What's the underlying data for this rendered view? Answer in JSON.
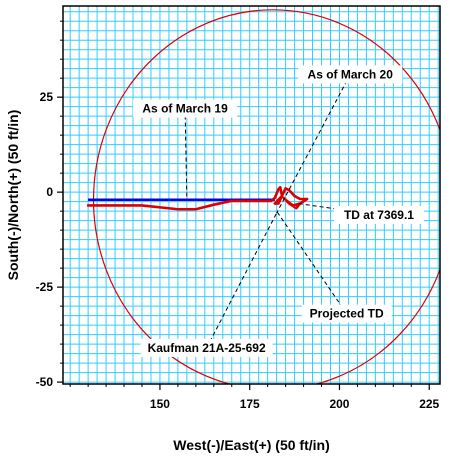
{
  "chart_data": {
    "type": "line",
    "xlabel": "West(-)/East(+) (50 ft/in)",
    "ylabel": "South(-)/North(+) (50 ft/in)",
    "xlim": [
      123,
      228
    ],
    "ylim": [
      -50.5,
      49
    ],
    "xticks": [
      150,
      175,
      200,
      225
    ],
    "yticks": [
      25,
      0,
      -25,
      -50
    ],
    "x_tick_labels": [
      "150",
      "175",
      "200",
      "225"
    ],
    "y_tick_labels": [
      "25",
      "0",
      "-25",
      "-50"
    ],
    "grid": true,
    "grid_step": 2.5,
    "colors": {
      "grid": "#33ccff",
      "circle": "#dd0000",
      "projected_path": "#0000dd",
      "actual_path": "#dd0000",
      "background": "#ffffff"
    },
    "target_circle": {
      "center": [
        181.5,
        -2
      ],
      "radius": 50
    },
    "series": [
      {
        "x": [
          130,
          182
        ],
        "y": [
          -2,
          -2
        ]
      },
      {
        "x": [
          130,
          145,
          155,
          160,
          165,
          170,
          174,
          178,
          181,
          182,
          183,
          183.5,
          184,
          182,
          183,
          184,
          185,
          186,
          187.5,
          189,
          191,
          189,
          187,
          185,
          184.5,
          186,
          188,
          189
        ],
        "y": [
          -3.5,
          -3.5,
          -4.5,
          -4.5,
          -3.3,
          -2.3,
          -2.3,
          -2.3,
          -2.3,
          -1.5,
          0.8,
          1.3,
          -1,
          -3,
          -3,
          -1,
          1,
          0.5,
          -1,
          -1.8,
          -1.8,
          -3,
          -3.5,
          -2,
          -1.5,
          -3,
          -4.2,
          -3
        ]
      }
    ],
    "annotations": [
      {
        "text": "As of March 19",
        "label_at": [
          157,
          22
        ],
        "point_at": [
          157.5,
          -2
        ]
      },
      {
        "text": "As of March 20",
        "label_at": [
          203,
          31
        ],
        "point_at": [
          182.5,
          -5.5
        ]
      },
      {
        "text": "TD at 7369.1",
        "label_at": [
          211,
          -6
        ],
        "point_at": [
          188.5,
          -3
        ]
      },
      {
        "text": "Projected TD",
        "label_at": [
          202,
          -32
        ],
        "point_at": [
          182.5,
          -5
        ]
      },
      {
        "text": "Kaufman 21A-25-692",
        "label_at": [
          163,
          -41
        ],
        "point_at": [
          182.5,
          -5.5
        ]
      }
    ]
  }
}
